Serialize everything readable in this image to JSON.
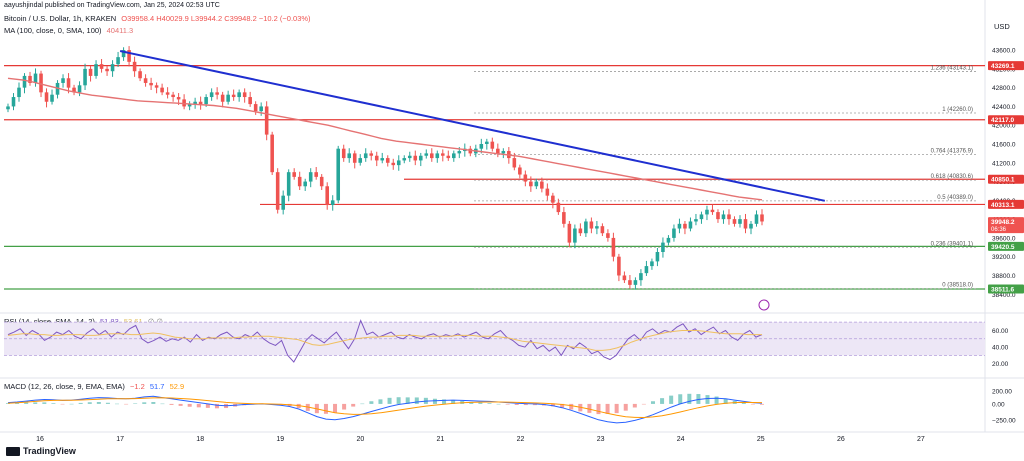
{
  "header": {
    "author_line": "aayushjindal published on TradingView.com, Jan 25, 2024 02:53 UTC",
    "symbol": "Bitcoin / U.S. Dollar, 1h, KRAKEN",
    "ohlc": "O39958.4 H40029.9 L39944.2 C39948.2 −10.2 (−0.03%)",
    "ma_label": "MA (100, close, 0, SMA, 100)",
    "ma_value": "40411.3",
    "currency": "USD"
  },
  "rsi_label": {
    "name": "RSI (14, close, SMA, 14, 2)",
    "v1": "51.83",
    "v2": "53.61"
  },
  "macd_label": {
    "name": "MACD (12, 26, close, 9, EMA, EMA)",
    "v1": "−1.2",
    "v2": "51.7",
    "v3": "52.9"
  },
  "footer": {
    "brand": "TradingView"
  },
  "colors": {
    "up": "#26a69a",
    "down": "#ef5350",
    "ma": "#e57373",
    "trend": "#1f2fd0",
    "res": "#e53935",
    "sup": "#43a047",
    "fib": "#9e9e9e",
    "rsi": "#7e57c2",
    "rsi_band": "#ede7f6",
    "macd": "#2962ff",
    "signal": "#ff9800",
    "hist_up": "#26a69a",
    "hist_down": "#ef5350"
  },
  "chart_data": [
    {
      "type": "candlestick",
      "ylim": [
        38150,
        43900
      ],
      "x_ticks": [
        "16",
        "17",
        "18",
        "19",
        "20",
        "21",
        "22",
        "23",
        "24",
        "25",
        "26",
        "27"
      ],
      "y_ticks": [
        "43600.0",
        "43200.0",
        "42800.0",
        "42400.0",
        "42000.0",
        "41600.0",
        "41200.0",
        "40800.0",
        "40400.0",
        "40000.0",
        "39600.0",
        "39200.0",
        "38800.0",
        "38400.0"
      ],
      "closes": [
        42400,
        42600,
        42800,
        43050,
        42900,
        43100,
        42700,
        42500,
        42650,
        42900,
        43000,
        42800,
        42700,
        42850,
        43200,
        43050,
        43300,
        43200,
        43150,
        43300,
        43450,
        43600,
        43350,
        43150,
        43000,
        42900,
        42850,
        42800,
        42700,
        42650,
        42600,
        42550,
        42400,
        42450,
        42500,
        42450,
        42600,
        42700,
        42650,
        42500,
        42650,
        42600,
        42700,
        42600,
        42450,
        42300,
        42400,
        41800,
        41000,
        40200,
        40500,
        41000,
        40900,
        40700,
        40800,
        41000,
        40900,
        40700,
        40300,
        40400,
        41500,
        41300,
        41400,
        41200,
        41300,
        41400,
        41350,
        41250,
        41300,
        41200,
        41150,
        41250,
        41300,
        41350,
        41250,
        41350,
        41400,
        41300,
        41400,
        41350,
        41300,
        41400,
        41450,
        41500,
        41400,
        41500,
        41600,
        41650,
        41500,
        41400,
        41450,
        41300,
        41100,
        40950,
        40800,
        40700,
        40800,
        40650,
        40500,
        40350,
        40150,
        39900,
        39500,
        39800,
        39700,
        39950,
        39800,
        39850,
        39700,
        39600,
        39200,
        38800,
        38700,
        38600,
        38700,
        38850,
        39000,
        39100,
        39300,
        39500,
        39600,
        39800,
        39900,
        39800,
        39950,
        40000,
        40100,
        40200,
        40150,
        40000,
        40100,
        40000,
        39900,
        40000,
        39800,
        39900,
        40100,
        39950
      ],
      "series": [
        {
          "name": "MA (100, close, 0, SMA, 100)",
          "values": [
            43000,
            42980,
            42960,
            42930,
            42890,
            42850,
            42810,
            42770,
            42730,
            42700,
            42670,
            42640,
            42620,
            42600,
            42580,
            42560,
            42540,
            42520,
            42510,
            42500,
            42490,
            42480,
            42470,
            42460,
            42450,
            42440,
            42430,
            42420,
            42400,
            42380,
            42360,
            42330,
            42300,
            42270,
            42240,
            42210,
            42180,
            42150,
            42120,
            42090,
            42060,
            42030,
            42000,
            41960,
            41920,
            41880,
            41840,
            41800,
            41760,
            41720,
            41690,
            41660,
            41640,
            41620,
            41600,
            41580,
            41560,
            41540,
            41520,
            41500,
            41480,
            41460,
            41440,
            41420,
            41400,
            41380,
            41360,
            41340,
            41310,
            41280,
            41250,
            41220,
            41190,
            41160,
            41130,
            41100,
            41070,
            41040,
            41010,
            40980,
            40950,
            40920,
            40890,
            40860,
            40830,
            40800,
            40770,
            40740,
            40710,
            40680,
            40650,
            40620,
            40590,
            40560,
            40530,
            40500,
            40470,
            40450,
            40430,
            40411
          ]
        }
      ],
      "price_labels": [
        {
          "text": "43269.1",
          "value": 43269.1,
          "color": "#e53935"
        },
        {
          "text": "42117.0",
          "value": 42117.0,
          "color": "#e53935"
        },
        {
          "text": "40850.1",
          "value": 40850.1,
          "color": "#e53935"
        },
        {
          "text": "40313.1",
          "value": 40313.1,
          "color": "#e53935"
        },
        {
          "text": "39948.2",
          "value": 39948.2,
          "color": "#ef5350",
          "sub": "06:36"
        },
        {
          "text": "39420.5",
          "value": 39420.5,
          "color": "#43a047"
        },
        {
          "text": "38511.6",
          "value": 38511.6,
          "color": "#43a047"
        }
      ],
      "fib_levels": [
        {
          "label": "1.236 (43143.1)",
          "value": 43143.1
        },
        {
          "label": "1 (42260.0)",
          "value": 42260.0
        },
        {
          "label": "0.764 (41376.9)",
          "value": 41376.9
        },
        {
          "label": "0.618 (40830.6)",
          "value": 40830.6
        },
        {
          "label": "0.5 (40389.0)",
          "value": 40389.0
        },
        {
          "label": "0.236 (39401.1)",
          "value": 39401.1
        },
        {
          "label": "0 (38518.0)",
          "value": 38518.0
        }
      ],
      "trendline": {
        "from": [
          17,
          43580
        ],
        "to": [
          25.8,
          40390
        ]
      }
    },
    {
      "type": "line",
      "name": "RSI",
      "ylim": [
        10,
        75
      ],
      "y_ticks": [
        "60.00",
        "40.00",
        "20.00"
      ],
      "band": [
        30,
        70
      ],
      "values": [
        55,
        58,
        62,
        54,
        60,
        56,
        48,
        52,
        58,
        55,
        60,
        53,
        50,
        57,
        62,
        55,
        60,
        52,
        58,
        55,
        62,
        66,
        50,
        45,
        48,
        52,
        47,
        50,
        48,
        52,
        46,
        55,
        48,
        52,
        50,
        55,
        58,
        52,
        50,
        55,
        52,
        58,
        50,
        45,
        42,
        48,
        30,
        22,
        35,
        48,
        55,
        50,
        45,
        52,
        58,
        48,
        38,
        50,
        72,
        55,
        58,
        52,
        55,
        58,
        52,
        50,
        55,
        52,
        50,
        54,
        56,
        52,
        55,
        53,
        56,
        52,
        55,
        58,
        52,
        50,
        56,
        60,
        52,
        48,
        42,
        40,
        48,
        38,
        42,
        35,
        40,
        30,
        42,
        38,
        45,
        40,
        32,
        35,
        28,
        25,
        30,
        40,
        50,
        55,
        48,
        58,
        62,
        56,
        60,
        58,
        64,
        68,
        58,
        62,
        55,
        60,
        64,
        56,
        60,
        52,
        48,
        56,
        60,
        52,
        55
      ],
      "sma": [
        54,
        55,
        56,
        56,
        55,
        55,
        54,
        54,
        55,
        55,
        55,
        54,
        54,
        55,
        56,
        56,
        56,
        55,
        55,
        56,
        57,
        56,
        54,
        52,
        51,
        50,
        50,
        50,
        51,
        51,
        51,
        51,
        52,
        52,
        53,
        53,
        53,
        52,
        51,
        50,
        49,
        46,
        43,
        42,
        43,
        45,
        47,
        49,
        50,
        51,
        52,
        52,
        53,
        53,
        54,
        54,
        54,
        53,
        53,
        53,
        53,
        53,
        54,
        54,
        54,
        53,
        53,
        53,
        52,
        51,
        49,
        47,
        46,
        45,
        44,
        43,
        42,
        41,
        40,
        39,
        38,
        36,
        36,
        37,
        39,
        42,
        46,
        49,
        52,
        54,
        56,
        58,
        59,
        60,
        60,
        60,
        59,
        58,
        57,
        56,
        56,
        56,
        55,
        55,
        55
      ]
    },
    {
      "type": "bar",
      "name": "MACD",
      "ylim": [
        -380,
        330
      ],
      "y_ticks": [
        "200.00",
        "0.00",
        "−250.00"
      ],
      "macd": [
        20,
        30,
        45,
        60,
        70,
        65,
        55,
        60,
        75,
        90,
        100,
        95,
        85,
        80,
        90,
        110,
        120,
        100,
        80,
        60,
        40,
        20,
        0,
        -20,
        -30,
        -20,
        -10,
        -5,
        0,
        -10,
        -20,
        -40,
        -80,
        -140,
        -200,
        -240,
        -250,
        -230,
        -200,
        -160,
        -120,
        -80,
        -40,
        -10,
        10,
        30,
        45,
        50,
        55,
        60,
        55,
        50,
        45,
        40,
        30,
        20,
        10,
        5,
        0,
        -10,
        -30,
        -60,
        -100,
        -150,
        -200,
        -250,
        -280,
        -300,
        -290,
        -260,
        -220,
        -170,
        -110,
        -50,
        0,
        40,
        70,
        85,
        90,
        80,
        60,
        40,
        20,
        10
      ],
      "signal": [
        10,
        18,
        28,
        40,
        50,
        56,
        58,
        59,
        62,
        68,
        75,
        80,
        82,
        82,
        84,
        89,
        95,
        96,
        93,
        86,
        77,
        65,
        52,
        38,
        24,
        15,
        8,
        3,
        2,
        -1,
        -5,
        -12,
        -26,
        -48,
        -78,
        -110,
        -138,
        -156,
        -165,
        -164,
        -155,
        -140,
        -120,
        -98,
        -76,
        -55,
        -35,
        -18,
        -4,
        8,
        17,
        24,
        28,
        30,
        30,
        28,
        24,
        20,
        16,
        11,
        3,
        -9,
        -27,
        -52,
        -82,
        -116,
        -149,
        -179,
        -201,
        -213,
        -214,
        -205,
        -186,
        -159,
        -127,
        -93,
        -60,
        -31,
        -7,
        10,
        20,
        24,
        23,
        20
      ]
    }
  ]
}
